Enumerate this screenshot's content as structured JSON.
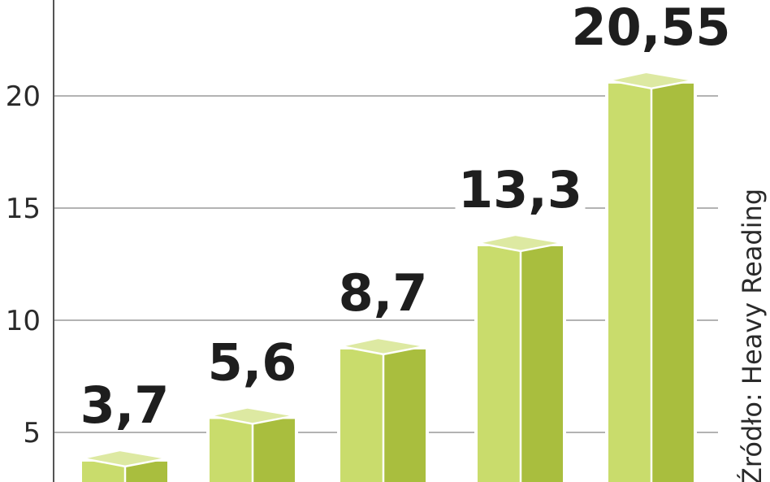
{
  "chart_data": {
    "type": "bar",
    "categories": [
      "",
      "",
      "",
      "",
      ""
    ],
    "values": [
      3.7,
      5.6,
      8.7,
      13.3,
      20.55
    ],
    "value_labels": [
      "3,7",
      "5,6",
      "8,7",
      "13,3",
      "20,55"
    ],
    "y_ticks": [
      5,
      10,
      15,
      20
    ],
    "y_tick_labels": [
      "5",
      "10",
      "15",
      "20"
    ],
    "ylim": [
      0,
      25
    ],
    "grid": true,
    "bar_style": "3d-box",
    "source": "Źródło: Heavy Reading"
  },
  "colors": {
    "bar_front": "#c9dc6c",
    "bar_side": "#a9be3e",
    "bar_top": "#dde9a2",
    "bar_edge": "#ffffff",
    "grid": "#9a9a9a",
    "axis": "#555555",
    "text": "#1e1e1e"
  }
}
